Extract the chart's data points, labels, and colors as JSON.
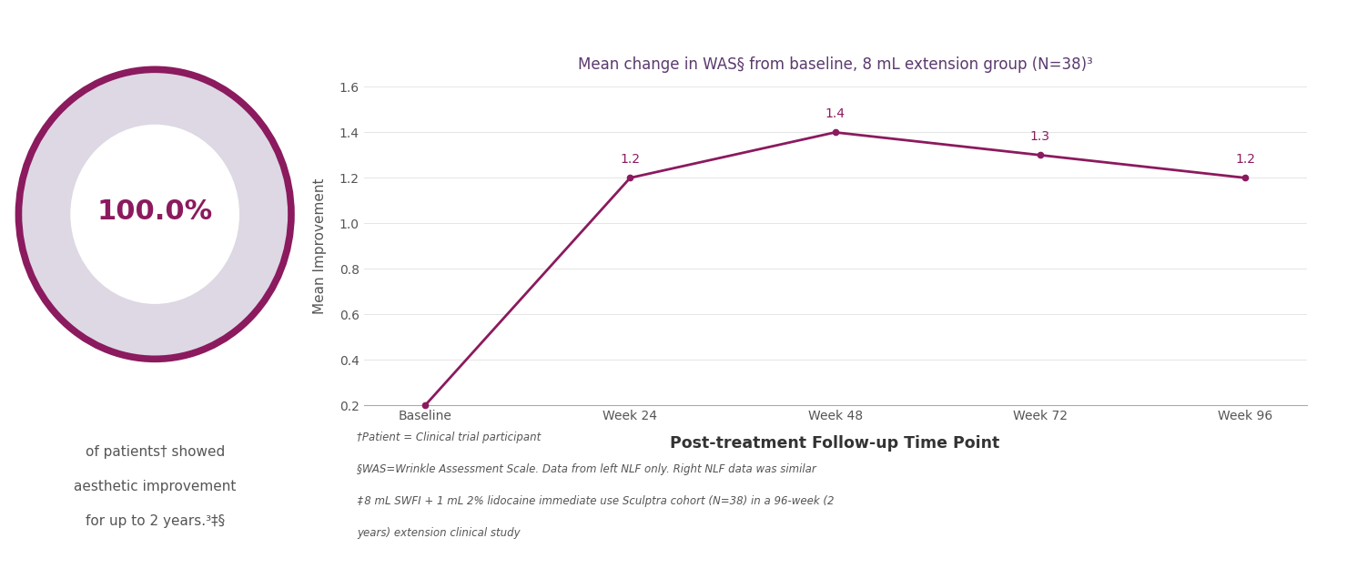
{
  "title": "Mean change in WAS§ from baseline, 8 mL extension group (N=38)³",
  "title_color": "#5b3a6e",
  "line_color": "#8b1a5e",
  "x_labels": [
    "Baseline",
    "Week 24",
    "Week 48",
    "Week 72",
    "Week 96"
  ],
  "y_values": [
    0.2,
    1.2,
    1.4,
    1.3,
    1.2
  ],
  "data_labels": [
    "",
    "1.2",
    "1.4",
    "1.3",
    "1.2"
  ],
  "ylabel": "Mean Improvement",
  "xlabel": "Post-treatment Follow-up Time Point",
  "ylim": [
    0.2,
    1.6
  ],
  "yticks": [
    0.2,
    0.4,
    0.6,
    0.8,
    1.0,
    1.2,
    1.4,
    1.6
  ],
  "donut_color": "#8b1a5e",
  "donut_fill_color": "#ddd8e4",
  "donut_text": "100.0%",
  "donut_text_color": "#8b1a5e",
  "below_donut_line1": "of patients† showed",
  "below_donut_line2": "aesthetic improvement",
  "below_donut_line3": "for up to 2 years.³‡§",
  "below_text_color": "#555555",
  "footnote1": "†Patient = Clinical trial participant",
  "footnote2": "§WAS=Wrinkle Assessment Scale. Data from left NLF only. Right NLF data was similar",
  "footnote3": "‡ 8 mL SWFI + 1 mL 2% lidocaine immediate use Sculptra cohort (N=38) in a 96-week (2",
  "footnote4": "years) extension clinical study",
  "footnote_color": "#555555",
  "background_color": "#ffffff",
  "axis_color": "#aaaaaa",
  "xlabel_color": "#333333",
  "ylabel_color": "#555555",
  "tick_color": "#555555"
}
